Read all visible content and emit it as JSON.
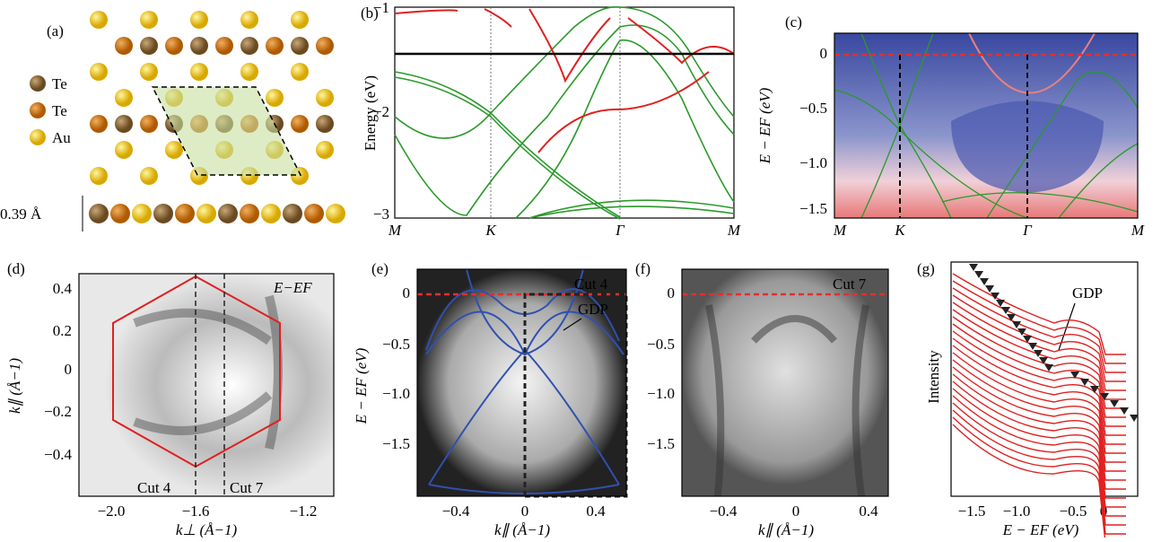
{
  "panels": [
    {
      "label": "(a)",
      "legend": [
        "Te",
        "Te",
        "Au"
      ],
      "annotation": "0.39 Å"
    },
    {
      "label": "(b)",
      "ylabel": "Energy (eV)",
      "yticks": [
        "−1",
        "−2",
        "−3"
      ],
      "xticks": [
        "M",
        "K",
        "Γ",
        "M"
      ]
    },
    {
      "label": "(c)",
      "ylabel": "E − EF (eV)",
      "yticks": [
        "0",
        "−0.5",
        "−1.0",
        "−1.5"
      ],
      "xticks": [
        "M",
        "K",
        "Γ",
        "M"
      ]
    },
    {
      "label": "(d)",
      "annotation": "E−EF",
      "ylabel": "k∥ (Å−1)",
      "xlabel": "k⊥ (Å−1)",
      "yticks": [
        "0.4",
        "0.2",
        "0",
        "−0.2",
        "−0.4"
      ],
      "xticks": [
        "−2.0",
        "−1.6",
        "−1.2"
      ],
      "cuts": [
        "Cut 4",
        "Cut 7"
      ]
    },
    {
      "label": "(e)",
      "annotation": "Cut 4",
      "arrow": "GDP",
      "ylabel": "E − EF (eV)",
      "yticks": [
        "0",
        "−0.5",
        "−1.0",
        "−1.5"
      ],
      "xticks": [
        "−0.4",
        "0",
        "0.4"
      ],
      "xlabel": "k∥ (Å−1)"
    },
    {
      "label": "(f)",
      "annotation": "Cut 7",
      "yticks": [
        "0",
        "−0.5",
        "−1.0",
        "−1.5"
      ],
      "xticks": [
        "−0.4",
        "0",
        "0.4"
      ],
      "xlabel": "k∥ (Å−1)"
    },
    {
      "label": "(g)",
      "ylabel": "Intensity",
      "annotation": "GDP",
      "xticks": [
        "−1.5",
        "−1.0",
        "−0.5",
        "0"
      ],
      "xlabel": "E − EF (eV)"
    }
  ]
}
